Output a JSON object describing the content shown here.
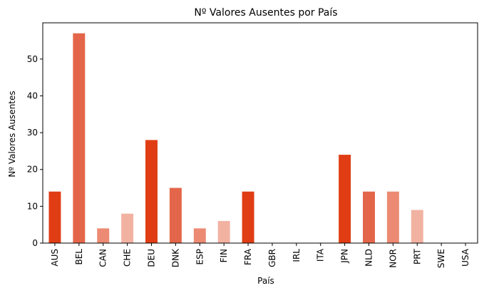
{
  "chart_data": {
    "type": "bar",
    "title": "Nº Valores Ausentes por País",
    "xlabel": "País",
    "ylabel": "Nº Valores Ausentes",
    "categories": [
      "AUS",
      "BEL",
      "CAN",
      "CHE",
      "DEU",
      "DNK",
      "ESP",
      "FIN",
      "FRA",
      "GBR",
      "IRL",
      "ITA",
      "JPN",
      "NLD",
      "NOR",
      "PRT",
      "SWE",
      "USA"
    ],
    "values": [
      14,
      57,
      4,
      8,
      28,
      15,
      4,
      6,
      14,
      0,
      0,
      0,
      24,
      14,
      14,
      9,
      0,
      0
    ],
    "colors": [
      "#e03d14",
      "#e4664a",
      "#ec8a73",
      "#f2b2a2",
      "#e03d14",
      "#e4664a",
      "#ec8a73",
      "#f2b2a2",
      "#e03d14",
      "#e4664a",
      "#ec8a73",
      "#f2b2a2",
      "#e03d14",
      "#e4664a",
      "#ec8a73",
      "#f2b2a2",
      "#e03d14",
      "#e4664a"
    ],
    "ylim": [
      0,
      59.85
    ],
    "yticks": [
      0,
      10,
      20,
      30,
      40,
      50
    ],
    "grid": false,
    "legend": "none"
  }
}
